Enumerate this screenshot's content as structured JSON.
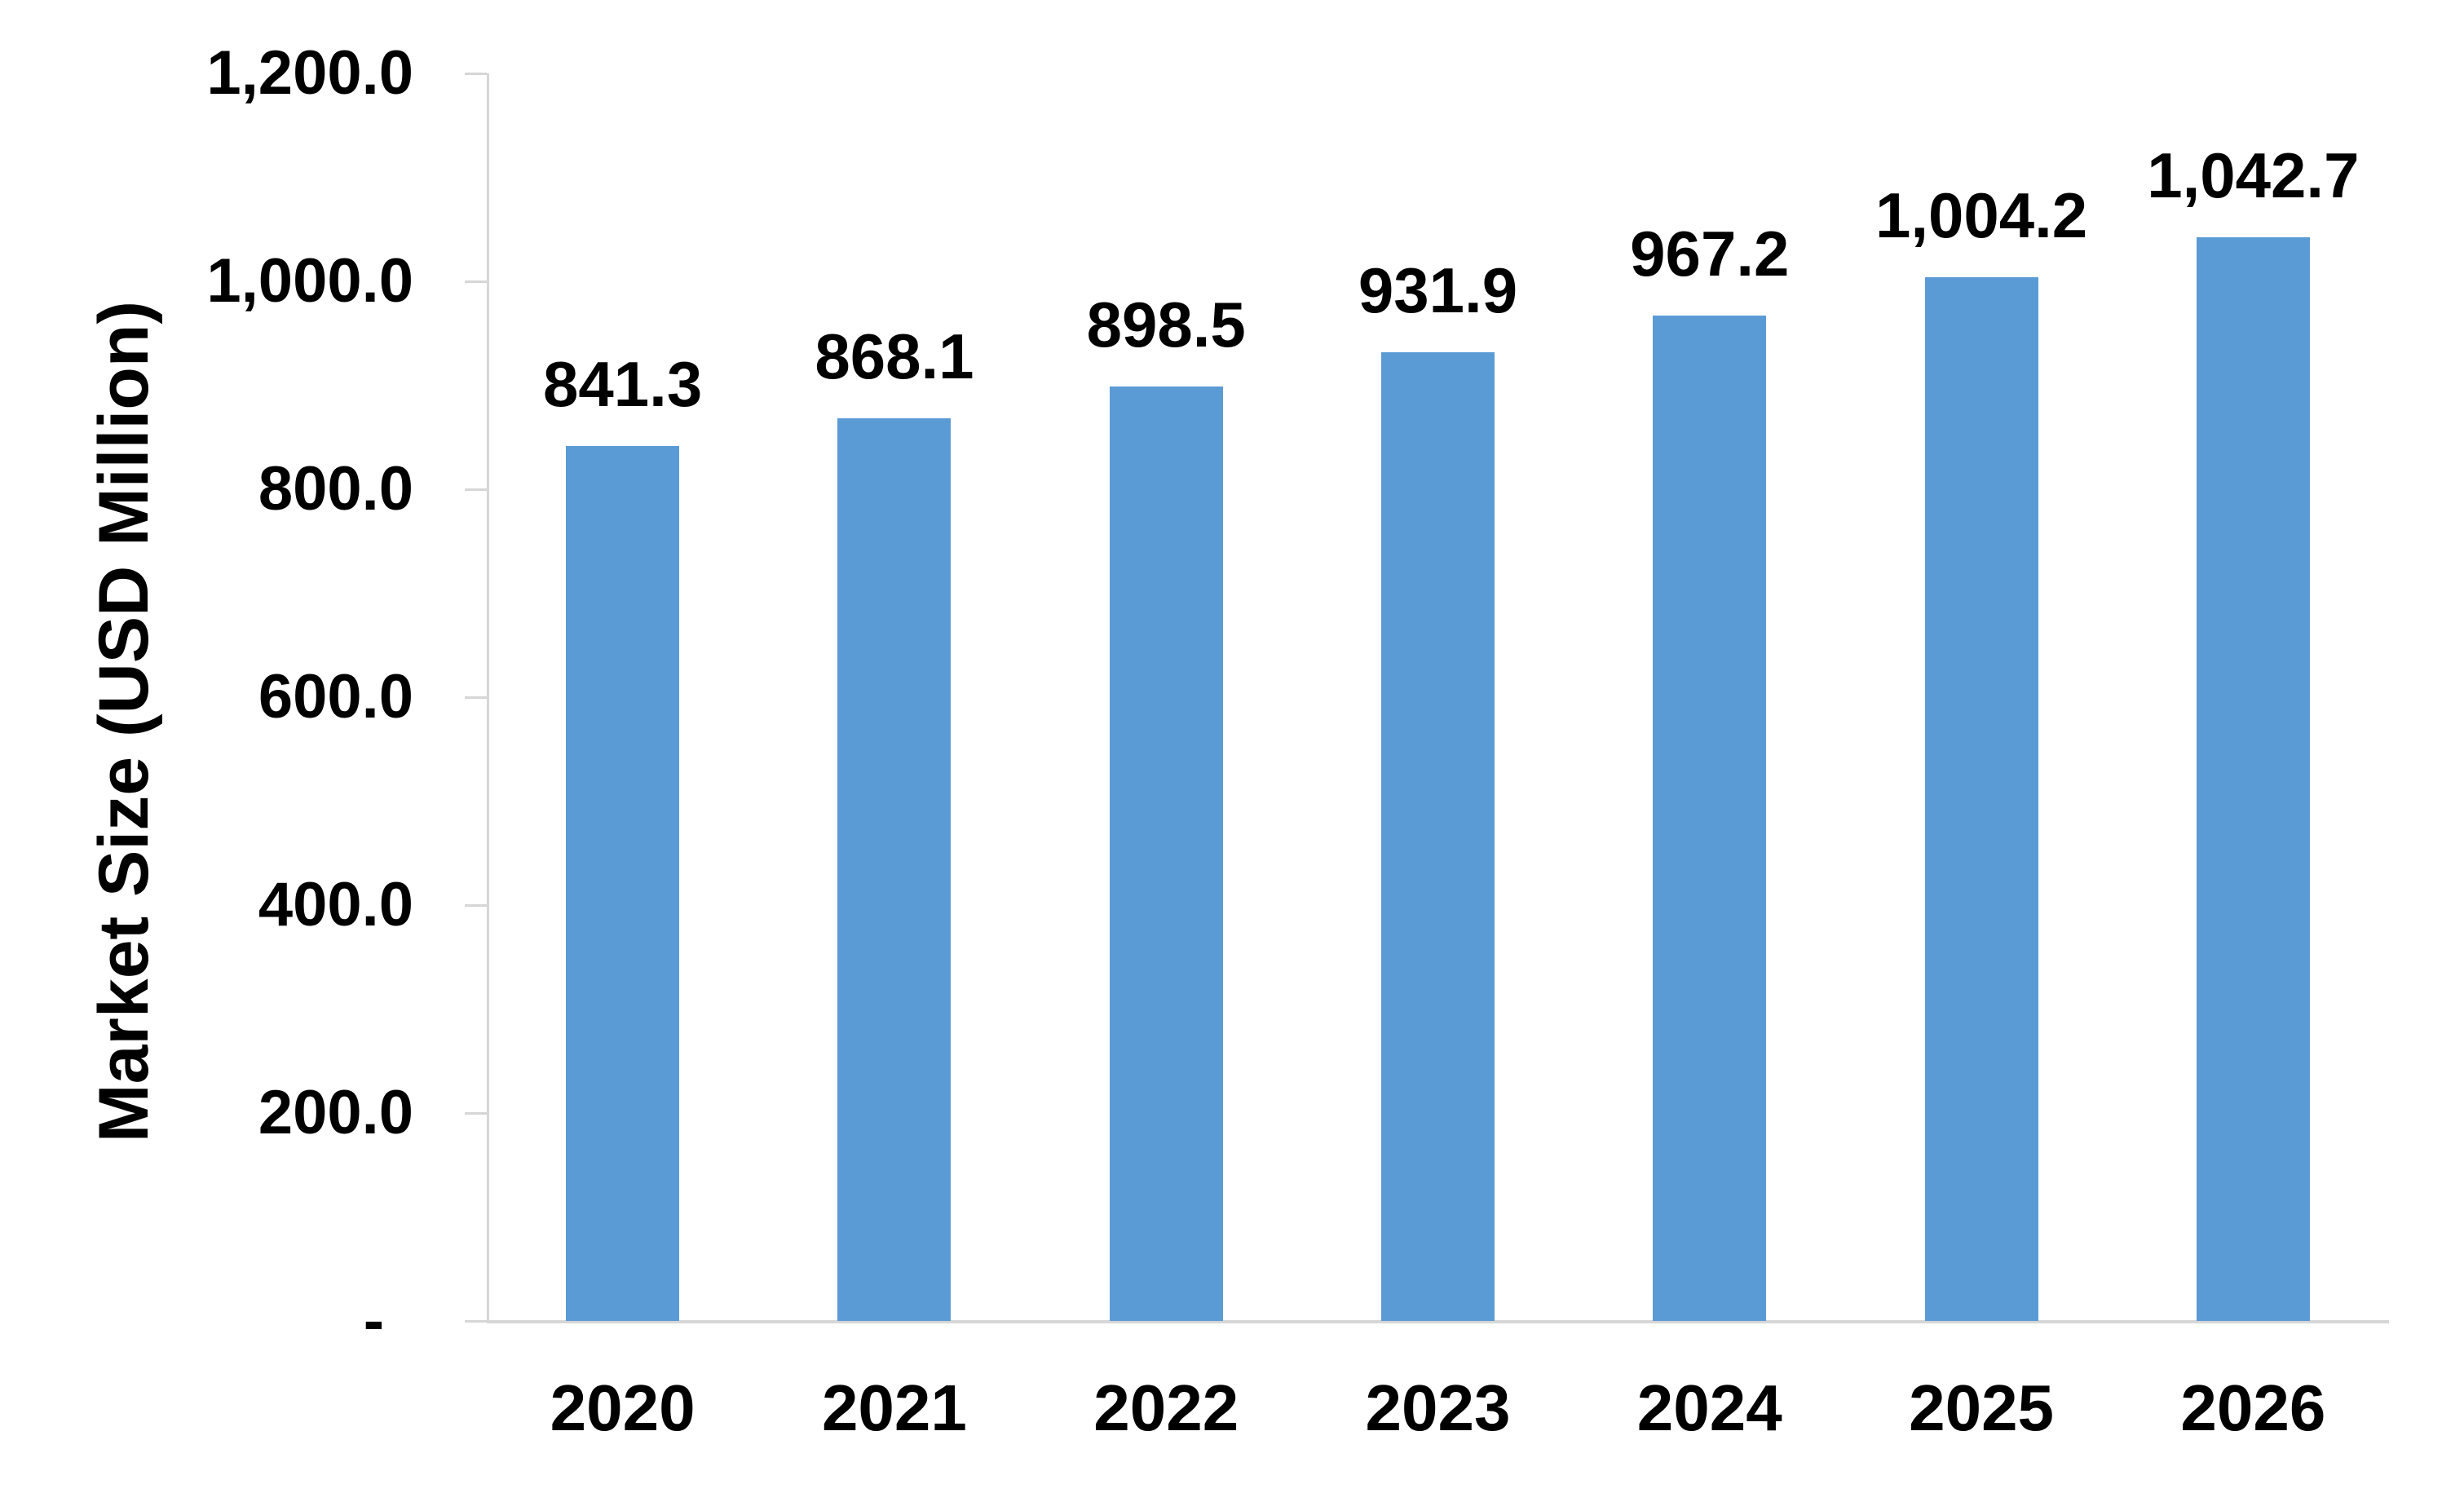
{
  "chart_data": {
    "type": "bar",
    "title": "",
    "ylabel": "Market Size (USD Million)",
    "xlabel": "",
    "categories": [
      "2020",
      "2021",
      "2022",
      "2023",
      "2024",
      "2025",
      "2026"
    ],
    "values": [
      841.3,
      868.1,
      898.5,
      931.9,
      967.2,
      1004.2,
      1042.7
    ],
    "value_labels": [
      "841.3",
      "868.1",
      "898.5",
      "931.9",
      "967.2",
      "1,004.2",
      "1,042.7"
    ],
    "ylim": [
      0,
      1200
    ],
    "y_ticks": [
      {
        "value": 1200,
        "label": "1,200.0"
      },
      {
        "value": 1000,
        "label": "1,000.0"
      },
      {
        "value": 800,
        "label": "800.0"
      },
      {
        "value": 600,
        "label": "600.0"
      },
      {
        "value": 400,
        "label": "400.0"
      },
      {
        "value": 200,
        "label": "200.0"
      },
      {
        "value": 0,
        "label": "-"
      }
    ],
    "grid": false,
    "legend_position": "none",
    "colors": {
      "bar": "#5B9BD5",
      "axis": "#D6D6D6",
      "text": "#000000",
      "background": "#FFFFFF"
    }
  }
}
